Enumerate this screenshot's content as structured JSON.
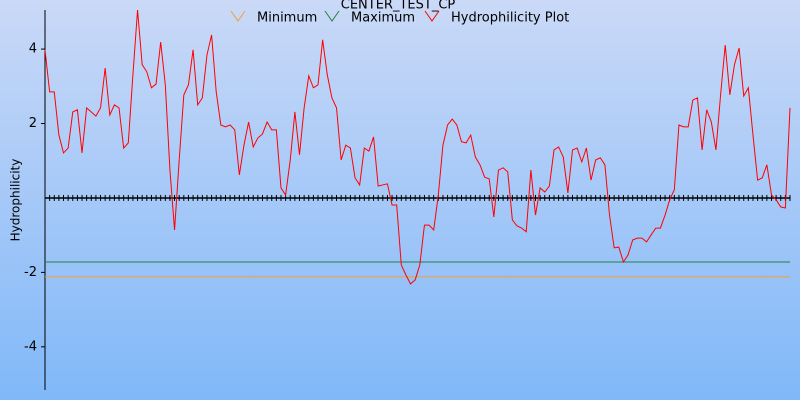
{
  "chart_data": {
    "type": "line",
    "title": "CENTER_TEST_CP",
    "y_label": "Hydrophilicity",
    "ylim": [
      -5.16,
      5.05
    ],
    "yticks": [
      -4,
      -2,
      2,
      4
    ],
    "series": [
      {
        "name": "Minimum",
        "color": "#f0a030",
        "value": -2.12
      },
      {
        "name": "Maximum",
        "color": "#208040",
        "value": -1.72
      },
      {
        "name": "Hydrophilicity Plot",
        "color": "#ff0000",
        "values": [
          3.98,
          2.85,
          2.85,
          1.69,
          1.21,
          1.34,
          2.31,
          2.37,
          1.21,
          2.42,
          2.31,
          2.2,
          2.42,
          3.49,
          2.23,
          2.5,
          2.42,
          1.34,
          1.48,
          3.31,
          5.05,
          3.58,
          3.39,
          2.96,
          3.06,
          4.19,
          3.04,
          0.75,
          -0.86,
          1.02,
          2.77,
          3.04,
          3.98,
          2.5,
          2.69,
          3.84,
          4.38,
          2.85,
          1.96,
          1.91,
          1.96,
          1.83,
          0.62,
          1.42,
          2.04,
          1.37,
          1.61,
          1.72,
          2.04,
          1.83,
          1.83,
          0.27,
          0.08,
          1.02,
          2.31,
          1.16,
          2.42,
          3.28,
          2.96,
          3.04,
          4.25,
          3.31,
          2.69,
          2.42,
          1.02,
          1.42,
          1.34,
          0.54,
          0.35,
          1.34,
          1.26,
          1.64,
          0.32,
          0.35,
          0.38,
          -0.19,
          -0.19,
          -1.8,
          -2.07,
          -2.31,
          -2.2,
          -1.8,
          -0.73,
          -0.73,
          -0.86,
          0.08,
          1.42,
          1.96,
          2.12,
          1.96,
          1.51,
          1.48,
          1.69,
          1.1,
          0.89,
          0.56,
          0.51,
          -0.51,
          0.75,
          0.81,
          0.7,
          -0.59,
          -0.75,
          -0.81,
          -0.91,
          0.75,
          -0.46,
          0.27,
          0.16,
          0.32,
          1.29,
          1.37,
          1.1,
          0.13,
          1.29,
          1.34,
          0.97,
          1.34,
          0.48,
          1.02,
          1.08,
          0.89,
          -0.46,
          -1.34,
          -1.32,
          -1.72,
          -1.53,
          -1.13,
          -1.08,
          -1.08,
          -1.18,
          -0.99,
          -0.81,
          -0.81,
          -0.46,
          -0.05,
          0.22,
          1.96,
          1.91,
          1.91,
          2.63,
          2.69,
          1.29,
          2.37,
          2.04,
          1.29,
          2.77,
          4.11,
          2.77,
          3.58,
          4.03,
          2.74,
          2.96,
          1.69,
          0.48,
          0.54,
          0.89,
          0.08,
          -0.05,
          -0.24,
          -0.27,
          2.42
        ]
      }
    ]
  }
}
